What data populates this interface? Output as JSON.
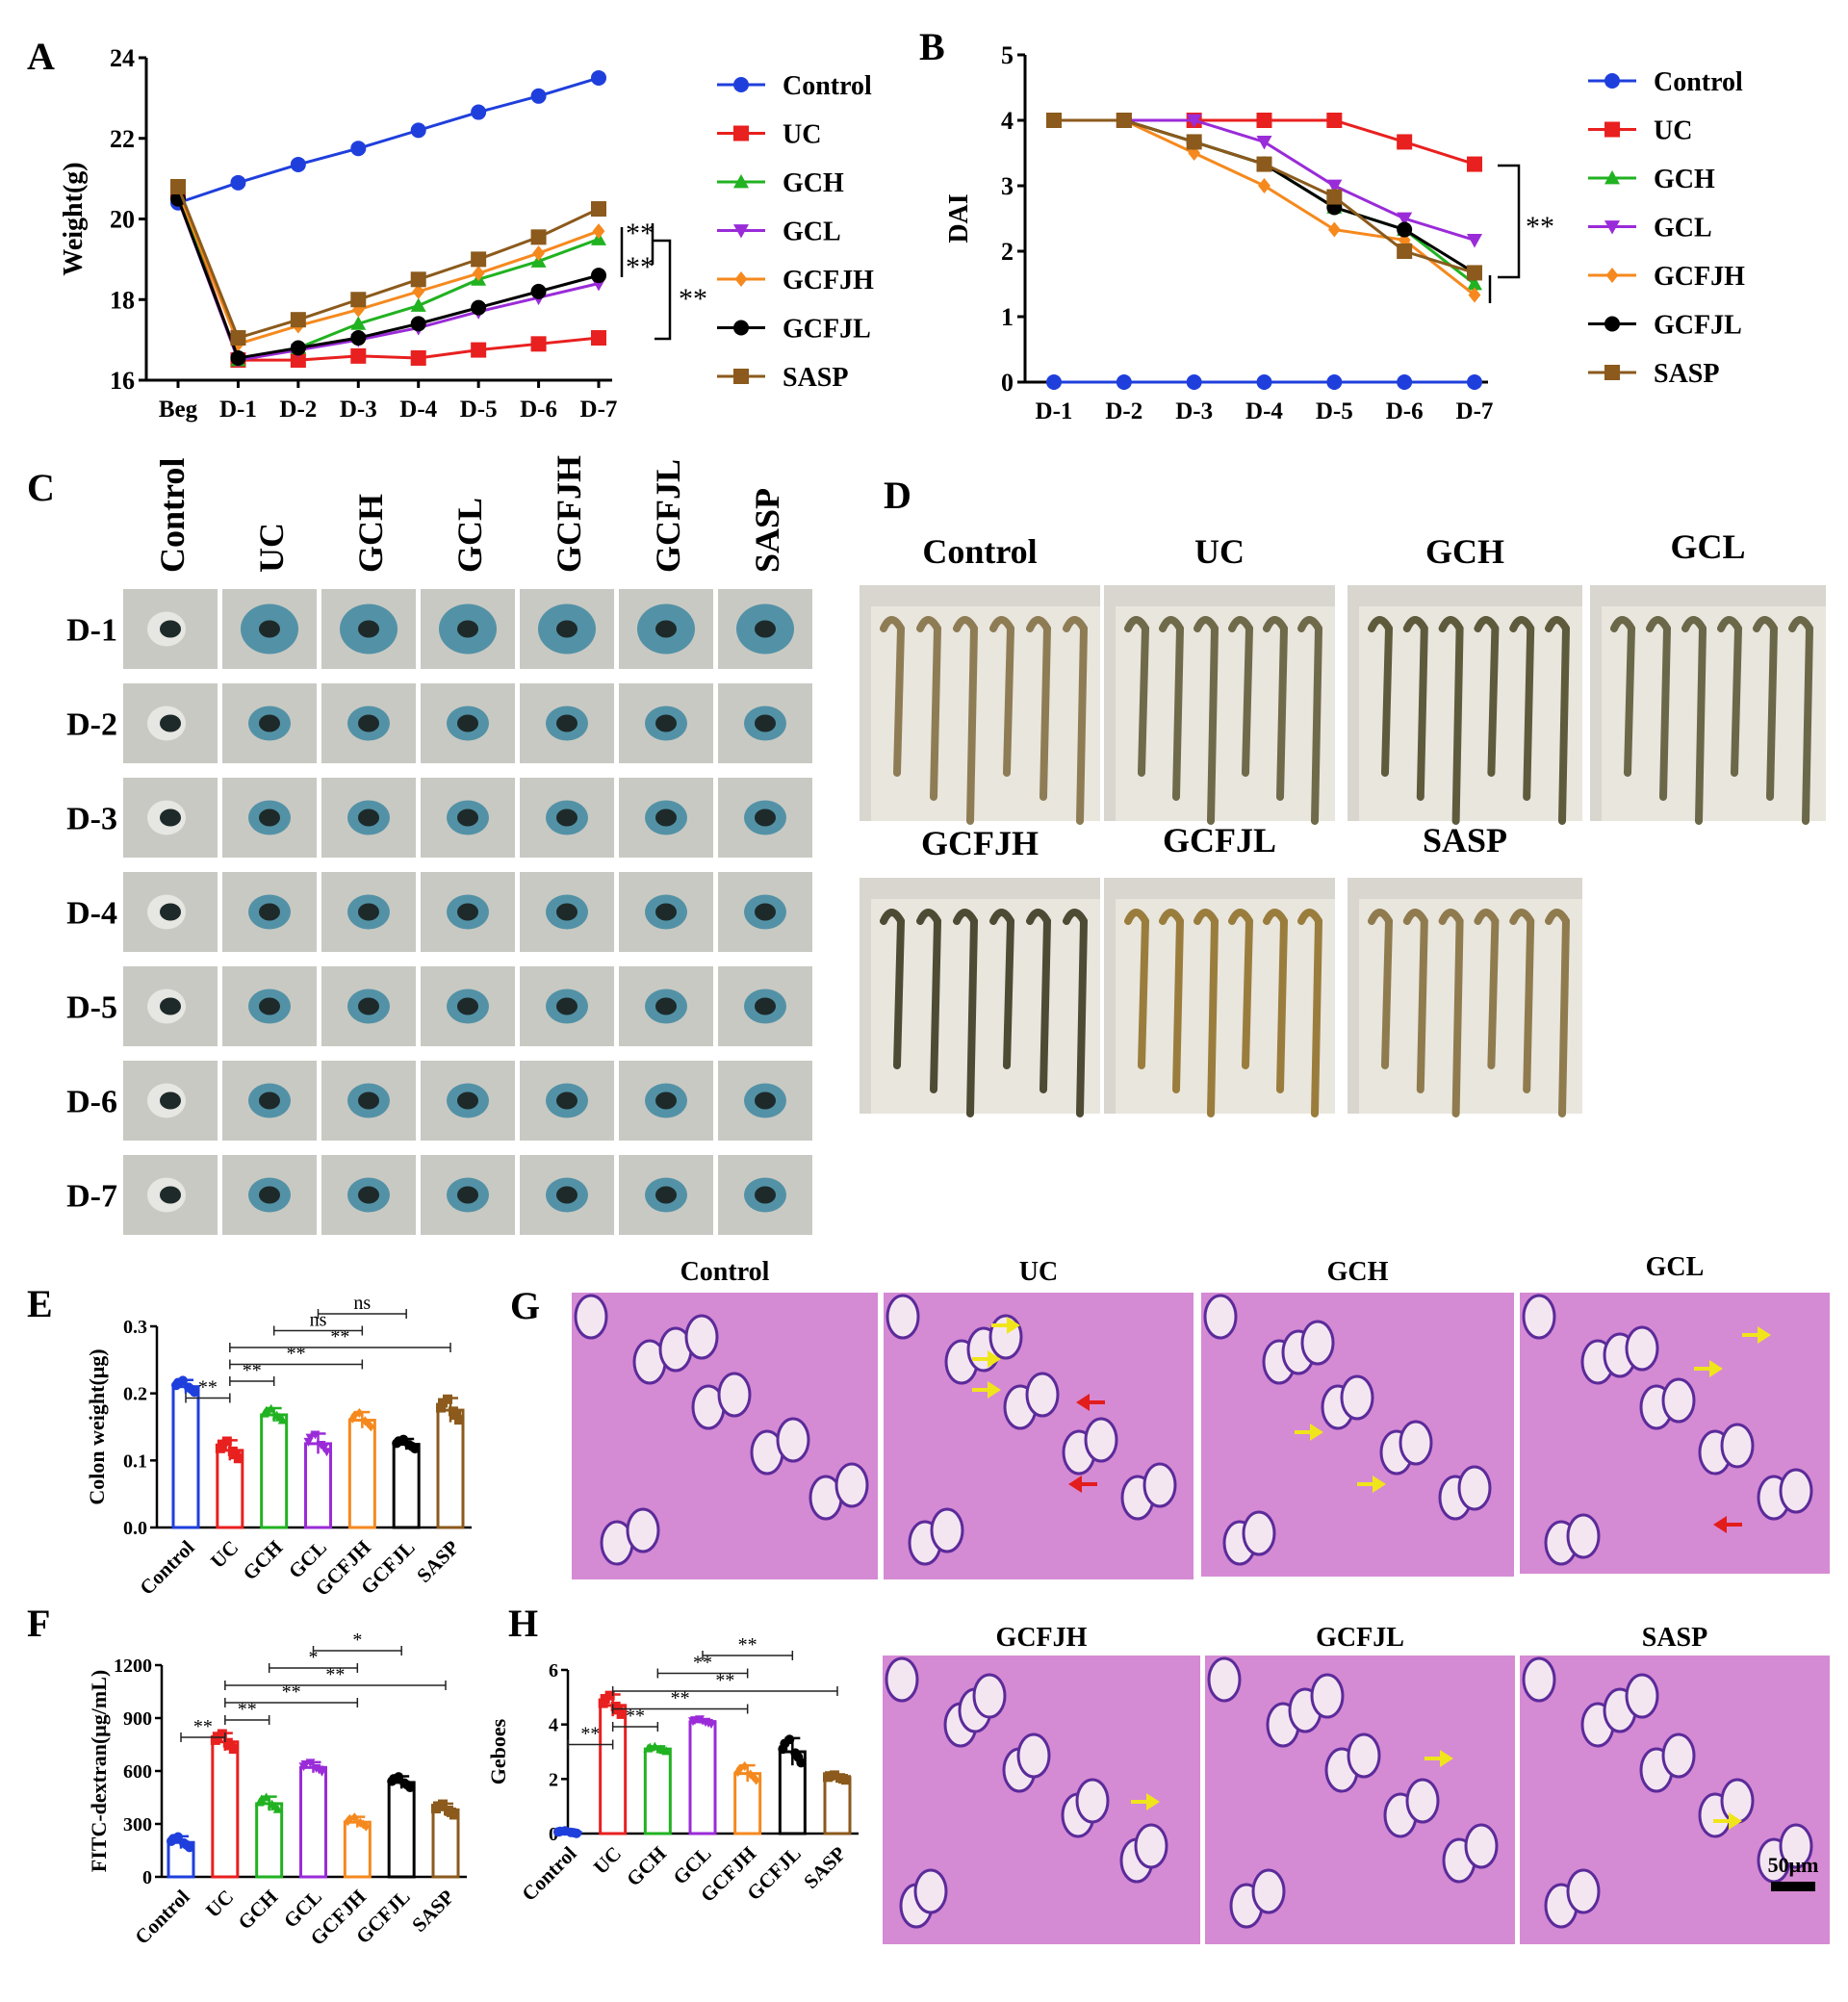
{
  "colors": {
    "Control": "#1f3fdc",
    "UC": "#e8201f",
    "GCH": "#21b221",
    "GCL": "#9a2bd8",
    "GCFJH": "#f5891e",
    "GCFJL": "#000000",
    "SASP": "#8b5a1c",
    "histo_bg": "#d58ad4",
    "histo_nuclei": "#5b2b9a",
    "plate_bg": "#c9c9c3",
    "stool_blue": "#2b7f9c",
    "ruler_bg": "#e9e6de"
  },
  "panels": {
    "A": "A",
    "B": "B",
    "C": "C",
    "D": "D",
    "E": "E",
    "F": "F",
    "G": "G",
    "H": "H"
  },
  "groups": [
    "Control",
    "UC",
    "GCH",
    "GCL",
    "GCFJH",
    "GCFJL",
    "SASP"
  ],
  "days": [
    "D-1",
    "D-2",
    "D-3",
    "D-4",
    "D-5",
    "D-6",
    "D-7"
  ],
  "chart_data": [
    {
      "id": "A",
      "type": "line",
      "ylabel": "Weight(g)",
      "xlabel": "",
      "categories": [
        "Beg",
        "D-1",
        "D-2",
        "D-3",
        "D-4",
        "D-5",
        "D-6",
        "D-7"
      ],
      "ylim": [
        16,
        24
      ],
      "yticks": [
        16,
        18,
        20,
        22,
        24
      ],
      "legend_position": "right",
      "series": [
        {
          "name": "Control",
          "marker": "circle",
          "values": [
            20.4,
            20.9,
            21.35,
            21.75,
            22.2,
            22.65,
            23.05,
            23.5
          ]
        },
        {
          "name": "UC",
          "marker": "square",
          "values": [
            20.7,
            16.5,
            16.5,
            16.6,
            16.55,
            16.75,
            16.9,
            17.05
          ]
        },
        {
          "name": "GCH",
          "marker": "triangle-up",
          "values": [
            20.6,
            16.5,
            16.8,
            17.4,
            17.85,
            18.5,
            18.95,
            19.5
          ]
        },
        {
          "name": "GCL",
          "marker": "triangle-down",
          "values": [
            20.5,
            16.5,
            16.75,
            17.0,
            17.3,
            17.7,
            18.05,
            18.4
          ]
        },
        {
          "name": "GCFJH",
          "marker": "diamond",
          "values": [
            20.7,
            16.9,
            17.35,
            17.75,
            18.2,
            18.65,
            19.15,
            19.7
          ]
        },
        {
          "name": "GCFJL",
          "marker": "circle",
          "values": [
            20.5,
            16.55,
            16.8,
            17.05,
            17.4,
            17.8,
            18.2,
            18.6
          ]
        },
        {
          "name": "SASP",
          "marker": "square",
          "values": [
            20.8,
            17.05,
            17.5,
            18.0,
            18.5,
            19.0,
            19.55,
            20.25
          ]
        }
      ],
      "annotations": [
        "**",
        "**",
        "**"
      ]
    },
    {
      "id": "B",
      "type": "line",
      "ylabel": "DAI",
      "xlabel": "",
      "categories": [
        "D-1",
        "D-2",
        "D-3",
        "D-4",
        "D-5",
        "D-6",
        "D-7"
      ],
      "ylim": [
        0,
        5
      ],
      "yticks": [
        0,
        1,
        2,
        3,
        4,
        5
      ],
      "legend_position": "right",
      "series": [
        {
          "name": "Control",
          "marker": "circle",
          "values": [
            0,
            0,
            0,
            0,
            0,
            0,
            0
          ]
        },
        {
          "name": "UC",
          "marker": "square",
          "values": [
            4,
            4,
            4,
            4,
            4,
            3.67,
            3.33
          ]
        },
        {
          "name": "GCH",
          "marker": "triangle-up",
          "values": [
            4,
            4,
            3.67,
            3.33,
            2.67,
            2.33,
            1.5
          ]
        },
        {
          "name": "GCL",
          "marker": "triangle-down",
          "values": [
            4,
            4,
            4,
            3.67,
            3.0,
            2.5,
            2.17
          ]
        },
        {
          "name": "GCFJH",
          "marker": "diamond",
          "values": [
            4,
            4,
            3.5,
            3.0,
            2.33,
            2.17,
            1.33
          ]
        },
        {
          "name": "GCFJL",
          "marker": "circle",
          "values": [
            4,
            4,
            3.67,
            3.33,
            2.67,
            2.33,
            1.67
          ]
        },
        {
          "name": "SASP",
          "marker": "square",
          "values": [
            4,
            4,
            3.67,
            3.33,
            2.83,
            2.0,
            1.67
          ]
        }
      ],
      "annotations": [
        "**"
      ]
    },
    {
      "id": "E",
      "type": "bar",
      "ylabel": "Colon weight(μg)",
      "categories": [
        "Control",
        "UC",
        "GCH",
        "GCL",
        "GCFJH",
        "GCFJL",
        "SASP"
      ],
      "values": [
        0.21,
        0.115,
        0.168,
        0.125,
        0.16,
        0.124,
        0.175
      ],
      "errors": [
        0.01,
        0.015,
        0.01,
        0.015,
        0.012,
        0.008,
        0.018
      ],
      "ylim": [
        0,
        0.3
      ],
      "yticks": [
        "0.0",
        "0.1",
        "0.2",
        "0.3"
      ],
      "significance": [
        {
          "from": 0,
          "to": 1,
          "label": "**"
        },
        {
          "from": 1,
          "to": 2,
          "label": "**"
        },
        {
          "from": 1,
          "to": 4,
          "label": "**"
        },
        {
          "from": 1,
          "to": 6,
          "label": "**"
        },
        {
          "from": 2,
          "to": 4,
          "label": "ns"
        },
        {
          "from": 3,
          "to": 5,
          "label": "ns"
        }
      ]
    },
    {
      "id": "F",
      "type": "bar",
      "ylabel": "FITC-dextran(μg/mL)",
      "categories": [
        "Control",
        "UC",
        "GCH",
        "GCL",
        "GCFJH",
        "GCFJL",
        "SASP"
      ],
      "values": [
        195,
        765,
        415,
        620,
        310,
        535,
        380
      ],
      "errors": [
        35,
        50,
        40,
        30,
        30,
        35,
        35
      ],
      "ylim": [
        0,
        1200
      ],
      "yticks": [
        "0",
        "300",
        "600",
        "900",
        "1200"
      ],
      "significance": [
        {
          "from": 0,
          "to": 1,
          "label": "**"
        },
        {
          "from": 1,
          "to": 2,
          "label": "**"
        },
        {
          "from": 1,
          "to": 4,
          "label": "**"
        },
        {
          "from": 1,
          "to": 6,
          "label": "**"
        },
        {
          "from": 2,
          "to": 4,
          "label": "*"
        },
        {
          "from": 3,
          "to": 5,
          "label": "*"
        }
      ]
    },
    {
      "id": "H",
      "type": "bar",
      "ylabel": "Geboes",
      "categories": [
        "Control",
        "UC",
        "GCH",
        "GCL",
        "GCFJH",
        "GCFJL",
        "SASP"
      ],
      "values": [
        0.05,
        4.7,
        3.1,
        4.1,
        2.2,
        3.0,
        2.05
      ],
      "errors": [
        0.05,
        0.4,
        0.1,
        0.1,
        0.3,
        0.5,
        0.1
      ],
      "ylim": [
        0,
        6
      ],
      "yticks": [
        "0",
        "2",
        "4",
        "6"
      ],
      "significance": [
        {
          "from": 0,
          "to": 1,
          "label": "**"
        },
        {
          "from": 1,
          "to": 2,
          "label": "**"
        },
        {
          "from": 1,
          "to": 4,
          "label": "**"
        },
        {
          "from": 1,
          "to": 6,
          "label": "**"
        },
        {
          "from": 2,
          "to": 4,
          "label": "**"
        },
        {
          "from": 3,
          "to": 5,
          "label": "**"
        }
      ]
    }
  ],
  "histology": {
    "top_labels": [
      "Control",
      "UC",
      "GCH",
      "GCL"
    ],
    "bottom_labels": [
      "GCFJH",
      "GCFJL",
      "SASP"
    ],
    "scale_bar": "50μm"
  },
  "colon_photos": {
    "top_labels": [
      "Control",
      "UC",
      "GCH",
      "GCL"
    ],
    "bottom_labels": [
      "GCFJH",
      "GCFJL",
      "SASP"
    ]
  }
}
